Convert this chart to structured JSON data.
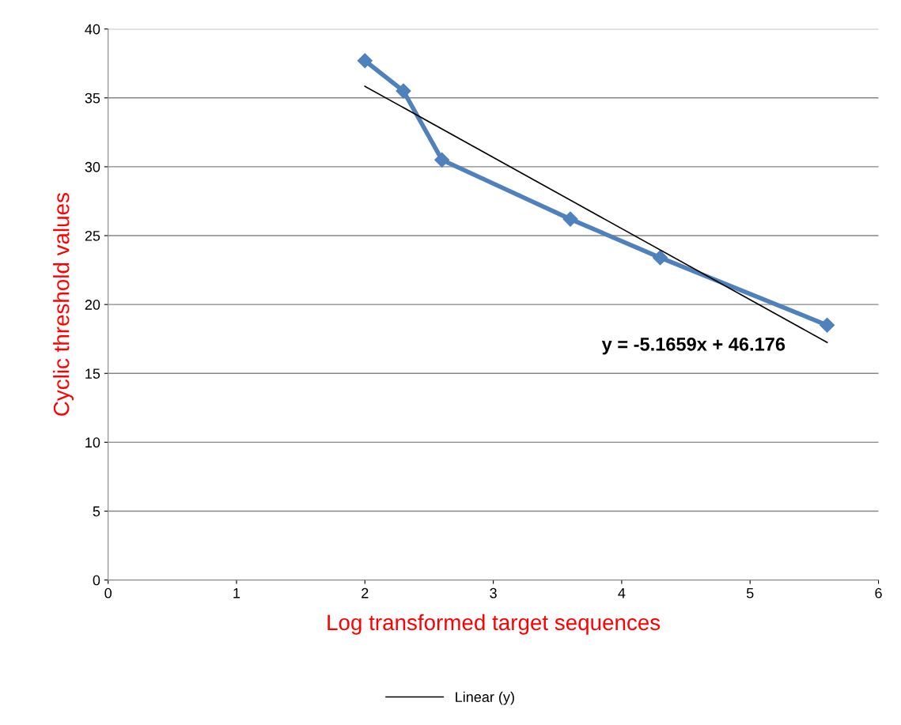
{
  "chart_data": {
    "type": "line",
    "xlabel": "Log transformed target sequences",
    "ylabel": "Cyclic threshold values",
    "xlim": [
      0,
      6
    ],
    "xticks": [
      0,
      1,
      2,
      3,
      4,
      5,
      6
    ],
    "ylim": [
      0,
      40
    ],
    "yticks": [
      0,
      5,
      10,
      15,
      20,
      25,
      30,
      35,
      40
    ],
    "grid": "y",
    "legend": "bottom",
    "marker": "diamond",
    "line_style": "solid",
    "series": [
      {
        "color": "#4f81bd",
        "x": [
          2,
          2.3,
          2.6,
          3.6,
          4.3,
          5.6
        ],
        "values": [
          37.7,
          35.5,
          30.5,
          26.2,
          23.4,
          18.5
        ]
      },
      {
        "name": "Linear (y)",
        "color": "#000000",
        "marker": "none",
        "x": [
          2,
          5.6
        ],
        "values": [
          35.84,
          17.25
        ]
      }
    ],
    "annotations": [
      "y = -5.1659x + 46.176"
    ]
  }
}
